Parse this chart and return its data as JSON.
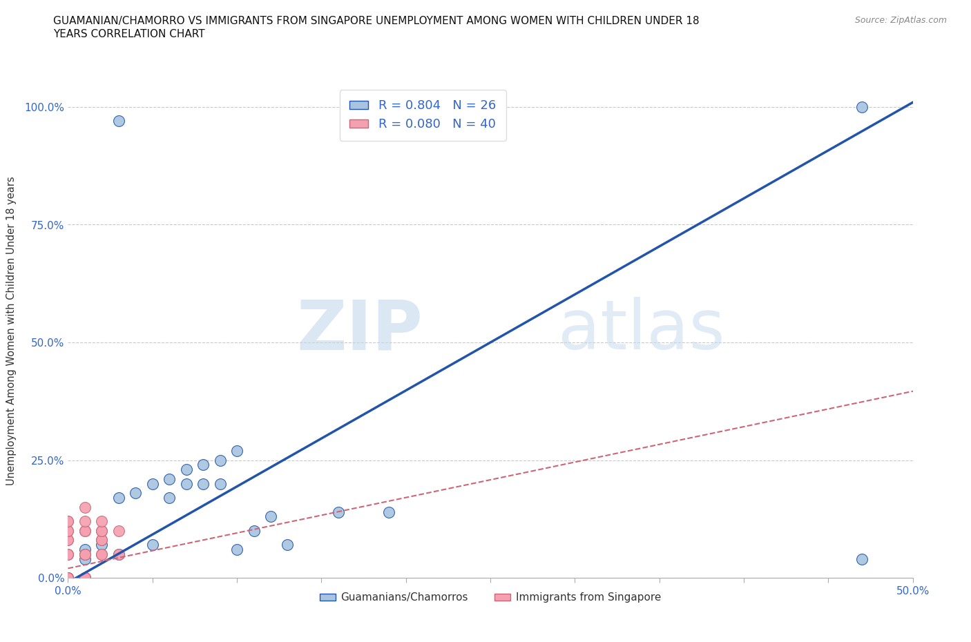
{
  "title": "GUAMANIAN/CHAMORRO VS IMMIGRANTS FROM SINGAPORE UNEMPLOYMENT AMONG WOMEN WITH CHILDREN UNDER 18\nYEARS CORRELATION CHART",
  "source": "Source: ZipAtlas.com",
  "ylabel": "Unemployment Among Women with Children Under 18 years",
  "xlim": [
    0,
    0.5
  ],
  "ylim": [
    0,
    1.05
  ],
  "xticks": [
    0.0,
    0.05,
    0.1,
    0.15,
    0.2,
    0.25,
    0.3,
    0.35,
    0.4,
    0.45,
    0.5
  ],
  "xtick_labels": [
    "0.0%",
    "",
    "",
    "",
    "",
    "",
    "",
    "",
    "",
    "",
    "50.0%"
  ],
  "yticks": [
    0.0,
    0.25,
    0.5,
    0.75,
    1.0
  ],
  "ytick_labels": [
    "0.0%",
    "25.0%",
    "50.0%",
    "75.0%",
    "100.0%"
  ],
  "blue_R": 0.804,
  "blue_N": 26,
  "pink_R": 0.08,
  "pink_N": 40,
  "blue_color": "#a8c4e0",
  "blue_line_color": "#2255aa",
  "pink_color": "#f4a0b0",
  "pink_line_color": "#cc6677",
  "watermark_zip": "ZIP",
  "watermark_atlas": "atlas",
  "legend_label_blue": "Guamanians/Chamorros",
  "legend_label_pink": "Immigrants from Singapore",
  "blue_scatter_x": [
    0.03,
    0.01,
    0.01,
    0.02,
    0.03,
    0.04,
    0.05,
    0.06,
    0.06,
    0.07,
    0.07,
    0.08,
    0.08,
    0.09,
    0.09,
    0.1,
    0.11,
    0.12,
    0.03,
    0.05,
    0.1,
    0.13,
    0.16,
    0.19,
    0.47,
    0.47
  ],
  "blue_scatter_y": [
    0.97,
    0.04,
    0.06,
    0.07,
    0.17,
    0.18,
    0.2,
    0.21,
    0.17,
    0.23,
    0.2,
    0.24,
    0.2,
    0.25,
    0.2,
    0.27,
    0.1,
    0.13,
    0.05,
    0.07,
    0.06,
    0.07,
    0.14,
    0.14,
    1.0,
    0.04
  ],
  "pink_scatter_x": [
    0.0,
    0.0,
    0.0,
    0.0,
    0.0,
    0.0,
    0.0,
    0.0,
    0.0,
    0.0,
    0.0,
    0.0,
    0.0,
    0.0,
    0.0,
    0.0,
    0.0,
    0.0,
    0.01,
    0.01,
    0.01,
    0.01,
    0.01,
    0.01,
    0.01,
    0.01,
    0.01,
    0.01,
    0.01,
    0.01,
    0.01,
    0.02,
    0.02,
    0.02,
    0.02,
    0.02,
    0.02,
    0.02,
    0.03,
    0.03
  ],
  "pink_scatter_y": [
    0.0,
    0.0,
    0.0,
    0.0,
    0.0,
    0.0,
    0.0,
    0.0,
    0.0,
    0.05,
    0.05,
    0.05,
    0.08,
    0.08,
    0.1,
    0.1,
    0.12,
    0.12,
    0.0,
    0.0,
    0.0,
    0.0,
    0.0,
    0.0,
    0.05,
    0.05,
    0.05,
    0.1,
    0.1,
    0.12,
    0.15,
    0.05,
    0.05,
    0.08,
    0.08,
    0.1,
    0.1,
    0.12,
    0.05,
    0.1
  ],
  "blue_line_x0": 0.0,
  "blue_line_y0": -0.01,
  "blue_line_x1": 0.505,
  "blue_line_y1": 1.02,
  "pink_line_x0": 0.0,
  "pink_line_y0": 0.02,
  "pink_line_x1": 0.505,
  "pink_line_y1": 0.4,
  "grid_color": "#bbbbbb",
  "bg_color": "#ffffff"
}
